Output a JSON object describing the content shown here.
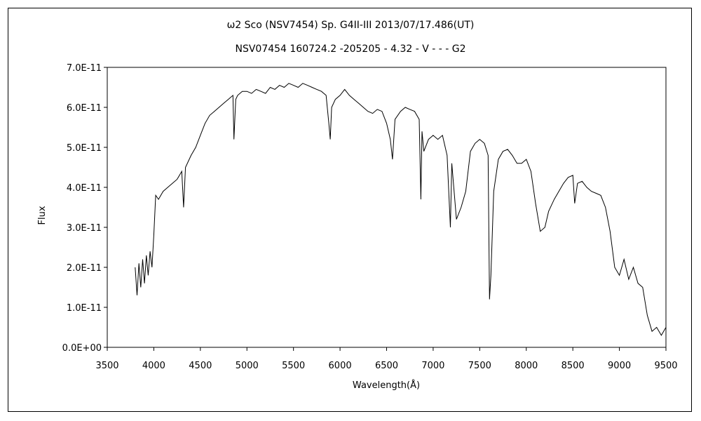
{
  "chart_data": {
    "type": "line",
    "title": "ω2 Sco (NSV7454)    Sp. G4II-III    2013/07/17.486(UT)",
    "subtitle": "NSV07454 160724.2 -205205 - 4.32 - V - - - G2",
    "xlabel": "Wavelength(Å)",
    "ylabel": "Flux",
    "xlim": [
      3500,
      9500
    ],
    "ylim": [
      0,
      7e-11
    ],
    "x_ticks": [
      3500,
      4000,
      4500,
      5000,
      5500,
      6000,
      6500,
      7000,
      7500,
      8000,
      8500,
      9000,
      9500
    ],
    "y_ticks": [
      0,
      1e-11,
      2e-11,
      3e-11,
      4e-11,
      5e-11,
      6e-11,
      7e-11
    ],
    "x_tick_labels": [
      "3500",
      "4000",
      "4500",
      "5000",
      "5500",
      "6000",
      "6500",
      "7000",
      "7500",
      "8000",
      "8500",
      "9000",
      "9500"
    ],
    "y_tick_labels": [
      "0.0E+00",
      "1.0E-11",
      "2.0E-11",
      "3.0E-11",
      "4.0E-11",
      "5.0E-11",
      "6.0E-11",
      "7.0E-11"
    ],
    "grid": false,
    "legend": "none",
    "line_color": "#000000",
    "series": [
      {
        "x": [
          3800,
          3820,
          3840,
          3860,
          3880,
          3900,
          3920,
          3940,
          3960,
          3980,
          4000,
          4020,
          4050,
          4100,
          4150,
          4200,
          4250,
          4300,
          4320,
          4340,
          4400,
          4450,
          4500,
          4550,
          4600,
          4650,
          4700,
          4750,
          4800,
          4850,
          4860,
          4880,
          4900,
          4950,
          5000,
          5050,
          5100,
          5150,
          5200,
          5250,
          5300,
          5350,
          5400,
          5450,
          5500,
          5550,
          5600,
          5650,
          5700,
          5750,
          5800,
          5850,
          5880,
          5895,
          5910,
          5950,
          6000,
          6050,
          6100,
          6150,
          6200,
          6250,
          6300,
          6350,
          6400,
          6450,
          6500,
          6540,
          6563,
          6590,
          6650,
          6700,
          6750,
          6800,
          6850,
          6868,
          6880,
          6900,
          6950,
          7000,
          7050,
          7100,
          7150,
          7185,
          7200,
          7250,
          7300,
          7350,
          7400,
          7450,
          7500,
          7550,
          7590,
          7605,
          7620,
          7650,
          7700,
          7750,
          7800,
          7850,
          7900,
          7950,
          8000,
          8050,
          8100,
          8150,
          8200,
          8240,
          8300,
          8350,
          8400,
          8450,
          8500,
          8520,
          8550,
          8600,
          8650,
          8700,
          8750,
          8800,
          8850,
          8900,
          8950,
          9000,
          9050,
          9100,
          9150,
          9200,
          9250,
          9300,
          9350,
          9400,
          9450,
          9500
        ],
        "y": [
          2e-11,
          1.3e-11,
          2.1e-11,
          1.5e-11,
          2.2e-11,
          1.6e-11,
          2.3e-11,
          1.8e-11,
          2.4e-11,
          2e-11,
          2.8e-11,
          3.8e-11,
          3.7e-11,
          3.9e-11,
          4e-11,
          4.1e-11,
          4.2e-11,
          4.4e-11,
          3.5e-11,
          4.5e-11,
          4.8e-11,
          5e-11,
          5.3e-11,
          5.6e-11,
          5.8e-11,
          5.9e-11,
          6e-11,
          6.1e-11,
          6.2e-11,
          6.3e-11,
          5.2e-11,
          6.2e-11,
          6.3e-11,
          6.4e-11,
          6.4e-11,
          6.35e-11,
          6.45e-11,
          6.4e-11,
          6.35e-11,
          6.5e-11,
          6.45e-11,
          6.55e-11,
          6.5e-11,
          6.6e-11,
          6.55e-11,
          6.5e-11,
          6.6e-11,
          6.55e-11,
          6.5e-11,
          6.45e-11,
          6.4e-11,
          6.3e-11,
          5.6e-11,
          5.2e-11,
          6e-11,
          6.2e-11,
          6.3e-11,
          6.45e-11,
          6.3e-11,
          6.2e-11,
          6.1e-11,
          6e-11,
          5.9e-11,
          5.85e-11,
          5.95e-11,
          5.9e-11,
          5.6e-11,
          5.2e-11,
          4.7e-11,
          5.7e-11,
          5.9e-11,
          6e-11,
          5.95e-11,
          5.9e-11,
          5.7e-11,
          3.7e-11,
          5.4e-11,
          4.9e-11,
          5.2e-11,
          5.3e-11,
          5.2e-11,
          5.3e-11,
          4.8e-11,
          3e-11,
          4.6e-11,
          3.2e-11,
          3.5e-11,
          3.9e-11,
          4.9e-11,
          5.1e-11,
          5.2e-11,
          5.1e-11,
          4.8e-11,
          1.2e-11,
          1.8e-11,
          3.9e-11,
          4.7e-11,
          4.9e-11,
          4.95e-11,
          4.8e-11,
          4.6e-11,
          4.6e-11,
          4.7e-11,
          4.4e-11,
          3.6e-11,
          2.9e-11,
          3e-11,
          3.4e-11,
          3.7e-11,
          3.9e-11,
          4.1e-11,
          4.25e-11,
          4.3e-11,
          3.6e-11,
          4.1e-11,
          4.15e-11,
          4e-11,
          3.9e-11,
          3.85e-11,
          3.8e-11,
          3.5e-11,
          2.9e-11,
          2e-11,
          1.8e-11,
          2.2e-11,
          1.7e-11,
          2e-11,
          1.6e-11,
          1.5e-11,
          8e-12,
          4e-12,
          5e-12,
          3e-12,
          5e-12
        ]
      }
    ]
  }
}
